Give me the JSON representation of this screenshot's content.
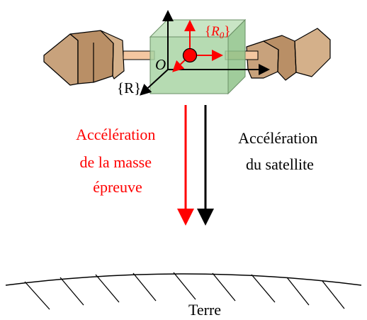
{
  "frames": {
    "satellite_frame": "{R}",
    "proof_mass_frame_letter": "R",
    "proof_mass_frame_subscript": "0",
    "origin": "O"
  },
  "labels": {
    "proof_mass_acceleration": [
      "Accélération",
      "de la masse",
      "épreuve"
    ],
    "satellite_acceleration": [
      "Accélération",
      "du satellite"
    ],
    "earth": "Terre"
  },
  "colors": {
    "proof_mass": "#ff0000",
    "satellite": "#000000",
    "cube_fill": "#a9d5a4",
    "panel_fill": "#c8a27c",
    "boom_fill": "#f4c7a1"
  }
}
